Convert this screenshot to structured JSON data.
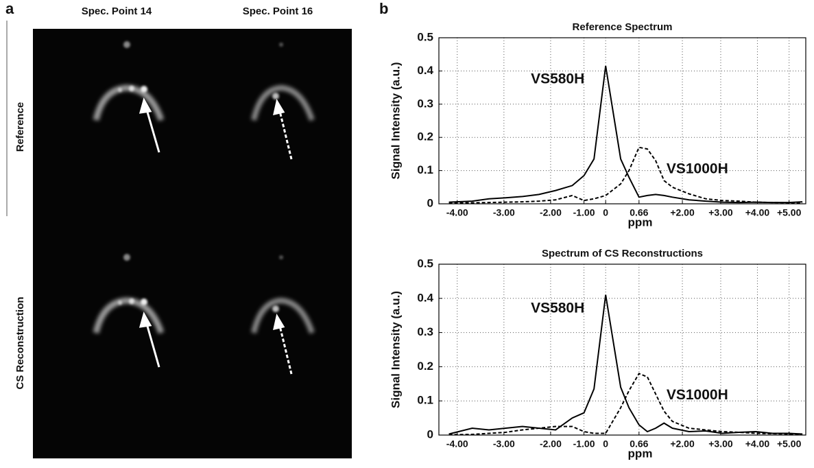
{
  "panel_a": {
    "label": "a",
    "columns": [
      "Spec. Point 14",
      "Spec. Point 16"
    ],
    "rows": [
      "Reference",
      "CS Reconstruction"
    ]
  },
  "panel_b": {
    "label": "b"
  },
  "chart_data": [
    {
      "type": "line",
      "title": "Reference Spectrum",
      "xlabel": "ppm",
      "ylabel": "Signal Intensity (a.u.)",
      "x": [
        4.6,
        6,
        7,
        8,
        9,
        10,
        11,
        12,
        12.7,
        13.3,
        14,
        14.9,
        15.4,
        16,
        16.5,
        17,
        17.5,
        18,
        19,
        20,
        21,
        22,
        23,
        24,
        25,
        25.8
      ],
      "series": [
        {
          "name": "VS580H",
          "color": "#000000",
          "line_style": "solid",
          "values": [
            0.005,
            0.008,
            0.015,
            0.018,
            0.022,
            0.028,
            0.04,
            0.055,
            0.085,
            0.135,
            0.415,
            0.135,
            0.08,
            0.02,
            0.025,
            0.028,
            0.025,
            0.02,
            0.012,
            0.008,
            0.005,
            0.004,
            0.005,
            0.004,
            0.004,
            0.006
          ]
        },
        {
          "name": "VS1000H",
          "color": "#000000",
          "line_style": "dashed",
          "values": [
            0.002,
            0.003,
            0.004,
            0.005,
            0.006,
            0.008,
            0.012,
            0.025,
            0.01,
            0.015,
            0.025,
            0.06,
            0.1,
            0.17,
            0.165,
            0.13,
            0.07,
            0.05,
            0.03,
            0.015,
            0.01,
            0.008,
            0.005,
            0.004,
            0.003,
            0.003
          ]
        }
      ],
      "xlim": [
        4,
        26
      ],
      "ylim": [
        0,
        0.5
      ],
      "xticks": [
        {
          "value": 5.1,
          "label": "-4.00"
        },
        {
          "value": 7.9,
          "label": "-3.00"
        },
        {
          "value": 10.7,
          "label": "-2.00"
        },
        {
          "value": 12.7,
          "label": "-1.00"
        },
        {
          "value": 14,
          "label": "0"
        },
        {
          "value": 16,
          "label": "0.66"
        },
        {
          "value": 18.6,
          "label": "+2.00"
        },
        {
          "value": 20.9,
          "label": "+3.00"
        },
        {
          "value": 23.1,
          "label": "+4.00"
        },
        {
          "value": 25,
          "label": "+5.00"
        }
      ],
      "yticks": [
        0,
        0.1,
        0.2,
        0.3,
        0.4,
        0.5
      ],
      "grid": true
    },
    {
      "type": "line",
      "title": "Spectrum of CS Reconstructions",
      "xlabel": "ppm",
      "ylabel": "Signal Intensity (a.u.)",
      "x": [
        4.6,
        6,
        7,
        8,
        9,
        10,
        11,
        12,
        12.7,
        13.3,
        14,
        14.9,
        15.4,
        16,
        16.5,
        17,
        17.5,
        18,
        19,
        20,
        21,
        22,
        23,
        24,
        25,
        25.8
      ],
      "series": [
        {
          "name": "VS580H",
          "color": "#000000",
          "line_style": "solid",
          "values": [
            0.003,
            0.02,
            0.015,
            0.02,
            0.025,
            0.02,
            0.015,
            0.05,
            0.065,
            0.135,
            0.41,
            0.14,
            0.08,
            0.03,
            0.01,
            0.02,
            0.035,
            0.02,
            0.01,
            0.012,
            0.005,
            0.008,
            0.01,
            0.005,
            0.005,
            0.003
          ]
        },
        {
          "name": "VS1000H",
          "color": "#000000",
          "line_style": "dashed",
          "values": [
            0.001,
            0.002,
            0.005,
            0.008,
            0.015,
            0.02,
            0.025,
            0.025,
            0.01,
            0.005,
            0.005,
            0.08,
            0.13,
            0.18,
            0.17,
            0.12,
            0.07,
            0.04,
            0.02,
            0.015,
            0.01,
            0.008,
            0.005,
            0.004,
            0.003,
            0.003
          ]
        }
      ],
      "xlim": [
        4,
        26
      ],
      "ylim": [
        0,
        0.5
      ],
      "xticks": [
        {
          "value": 5.1,
          "label": "-4.00"
        },
        {
          "value": 7.9,
          "label": "-3.00"
        },
        {
          "value": 10.7,
          "label": "-2.00"
        },
        {
          "value": 12.7,
          "label": "-1.00"
        },
        {
          "value": 14,
          "label": "0"
        },
        {
          "value": 16,
          "label": "0.66"
        },
        {
          "value": 18.6,
          "label": "+2.00"
        },
        {
          "value": 20.9,
          "label": "+3.00"
        },
        {
          "value": 23.1,
          "label": "+4.00"
        },
        {
          "value": 25,
          "label": "+5.00"
        }
      ],
      "yticks": [
        0,
        0.1,
        0.2,
        0.3,
        0.4,
        0.5
      ],
      "grid": true
    }
  ]
}
